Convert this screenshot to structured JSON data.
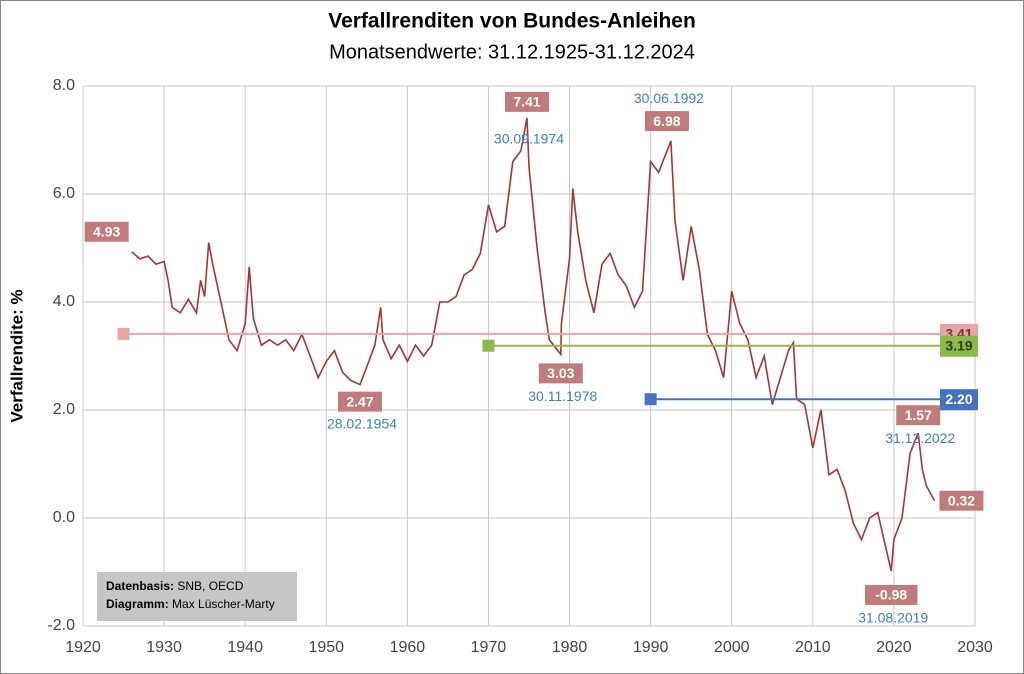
{
  "chart_data": {
    "type": "line",
    "title": "Verfallrenditen  von Bundes-Anleihen",
    "subtitle": "Monatsendwerte: 31.12.1925-31.12.2024",
    "y_label": "Verfallrendite: %",
    "color": "#a33535",
    "x": [
      1926,
      1927,
      1928,
      1929,
      1930,
      1930.5,
      1931,
      1932,
      1933,
      1934,
      1934.5,
      1935,
      1935.5,
      1936,
      1937,
      1938,
      1939,
      1940,
      1940.5,
      1941,
      1942,
      1943,
      1944,
      1945,
      1946,
      1947,
      1948,
      1949,
      1950,
      1951,
      1952,
      1953,
      1954.16,
      1955,
      1956,
      1956.7,
      1957,
      1958,
      1959,
      1960,
      1961,
      1962,
      1963,
      1964,
      1965,
      1966,
      1967,
      1968,
      1969,
      1970,
      1971,
      1972,
      1973,
      1974,
      1974.75,
      1975,
      1976,
      1977,
      1977.5,
      1978.92,
      1979,
      1980,
      1980.4,
      1981,
      1982,
      1983,
      1984,
      1985,
      1986,
      1987,
      1988,
      1989,
      1990,
      1991,
      1991.5,
      1992.5,
      1993,
      1994,
      1995,
      1996,
      1997,
      1998,
      1999,
      2000,
      2001,
      2002,
      2003,
      2004,
      2005,
      2006,
      2007,
      2007.6,
      2008,
      2009,
      2010,
      2011,
      2012,
      2013,
      2014,
      2015,
      2016,
      2017,
      2018,
      2019.67,
      2020,
      2021,
      2022,
      2023,
      2023.5,
      2024,
      2025
    ],
    "values": [
      4.93,
      4.8,
      4.85,
      4.7,
      4.75,
      4.4,
      3.9,
      3.8,
      4.05,
      3.8,
      4.4,
      4.1,
      5.1,
      4.7,
      4.0,
      3.3,
      3.1,
      3.6,
      4.65,
      3.7,
      3.2,
      3.3,
      3.2,
      3.3,
      3.1,
      3.4,
      3.0,
      2.6,
      2.9,
      3.1,
      2.7,
      2.55,
      2.47,
      2.8,
      3.2,
      3.9,
      3.3,
      2.95,
      3.2,
      2.9,
      3.2,
      3.0,
      3.2,
      4.0,
      4.0,
      4.1,
      4.5,
      4.6,
      4.9,
      5.8,
      5.3,
      5.4,
      6.6,
      6.8,
      7.41,
      6.5,
      5.0,
      3.8,
      3.3,
      3.03,
      3.6,
      4.8,
      6.1,
      5.3,
      4.4,
      3.8,
      4.7,
      4.9,
      4.5,
      4.3,
      3.9,
      4.2,
      6.6,
      6.4,
      6.6,
      6.98,
      5.5,
      4.4,
      5.4,
      4.6,
      3.4,
      3.1,
      2.6,
      4.2,
      3.6,
      3.3,
      2.6,
      3.0,
      2.1,
      2.6,
      3.1,
      3.25,
      2.2,
      2.1,
      1.3,
      2.0,
      0.8,
      0.9,
      0.5,
      -0.1,
      -0.4,
      0.0,
      0.1,
      -0.98,
      -0.4,
      0.0,
      1.2,
      1.57,
      0.9,
      0.6,
      0.32
    ],
    "xlim": [
      1920,
      2030
    ],
    "xticks": [
      1920,
      1930,
      1940,
      1950,
      1960,
      1970,
      1980,
      1990,
      2000,
      2010,
      2020,
      2030
    ],
    "ylim": [
      -2,
      8
    ],
    "yticks": [
      {
        "value": -2,
        "label": "-2.0"
      },
      {
        "value": 0,
        "label": "0.0"
      },
      {
        "value": 2,
        "label": "2.0"
      },
      {
        "value": 4,
        "label": "4.0"
      },
      {
        "value": 6,
        "label": "6.0"
      },
      {
        "value": 8,
        "label": "8.0"
      }
    ],
    "grid": true,
    "mean_lines": [
      {
        "from": 1925,
        "to": 2025,
        "value": 3.41,
        "label": "3.41",
        "color": "#eaa4a4"
      },
      {
        "from": 1970,
        "to": 2025,
        "value": 3.19,
        "label": "3.19",
        "color": "#8cb84c"
      },
      {
        "from": 1990,
        "to": 2025,
        "value": 2.2,
        "label": "2.20",
        "color": "#4472c4"
      }
    ],
    "annotations": [
      {
        "x": 1926,
        "value": 4.93,
        "label": "4.93"
      },
      {
        "x": 1954.16,
        "value": 2.47,
        "label": "2.47",
        "date": "28.02.1954"
      },
      {
        "x": 1974.75,
        "value": 7.41,
        "label": "7.41",
        "date": "30.09.1974"
      },
      {
        "x": 1978.92,
        "value": 3.03,
        "label": "3.03",
        "date": "30.11.1978"
      },
      {
        "x": 1992.5,
        "value": 6.98,
        "label": "6.98",
        "date": "30.06.1992"
      },
      {
        "x": 2019.67,
        "value": -0.98,
        "label": "-0.98",
        "date": "31.08.2019"
      },
      {
        "x": 2023,
        "value": 1.57,
        "label": "1.57",
        "date": "31.12.2022"
      },
      {
        "x": 2025,
        "value": 0.32,
        "label": "0.32"
      }
    ],
    "source": {
      "basis_label": "Datenbasis:",
      "basis": "SNB, OECD",
      "diagram_label": "Diagramm:",
      "diagram": "Max Lüscher-Marty"
    }
  }
}
